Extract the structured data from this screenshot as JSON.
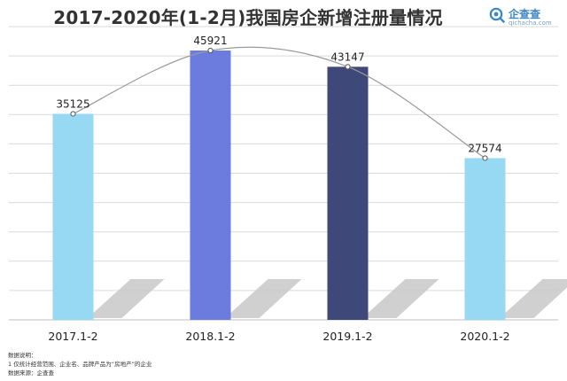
{
  "header": {
    "title": "2017-2020年(1-2月)我国房企新增注册量情况"
  },
  "brand": {
    "name": "企查查",
    "url": "qichacha.com"
  },
  "chart_data": {
    "type": "bar",
    "title": "2017-2020年(1-2月)我国房企新增注册量情况",
    "categories": [
      "2017.1-2",
      "2018.1-2",
      "2019.1-2",
      "2020.1-2"
    ],
    "values": [
      35125,
      45921,
      43147,
      27574
    ],
    "bar_colors": [
      "#97d8f3",
      "#6b7cde",
      "#3f4979",
      "#97d8f3"
    ],
    "data_labels": [
      "35125",
      "45921",
      "43147",
      "27574"
    ],
    "trend_line": true,
    "xlabel": "",
    "ylabel": "",
    "ylim": [
      0,
      50000
    ],
    "grid": true,
    "legend": "none"
  },
  "notes": {
    "heading": "数据说明：",
    "line1": "1 仅统计经营范围、企业名、品牌产品为“房地产”的企业",
    "source": "数据来源：企查查"
  },
  "colors": {
    "grid": "#d9d9d9",
    "axis": "#bfbfbf",
    "shadow": "#c8c8c8",
    "trend": "#9a9a9a"
  }
}
